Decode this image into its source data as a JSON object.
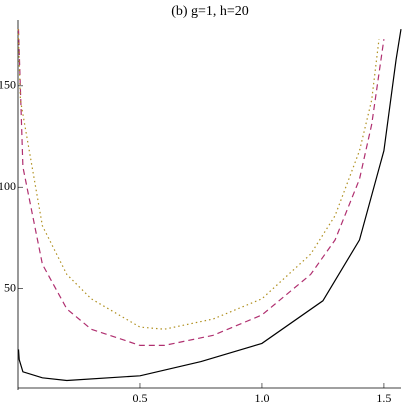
{
  "chart_data": {
    "type": "line",
    "title": "(b) g=1, h=20",
    "xlim": [
      0,
      1.57
    ],
    "ylim": [
      0,
      180
    ],
    "xticks": [
      0.5,
      {
        "value": 1,
        "label": "1.0"
      },
      1.5
    ],
    "yticks": [
      50,
      100,
      150
    ],
    "series": [
      {
        "color": "#000000",
        "dash": "solid",
        "x": [
          0.002,
          0.005,
          0.02,
          0.1,
          0.2,
          0.5,
          0.75,
          1.0,
          1.25,
          1.4,
          1.5,
          1.55,
          1.57
        ],
        "values": [
          20,
          15,
          9,
          6,
          4.7,
          7,
          14,
          23,
          44,
          74,
          118,
          163,
          178
        ]
      },
      {
        "color": "#b03070",
        "dash": "dashed",
        "x": [
          0.002,
          0.02,
          0.1,
          0.2,
          0.3,
          0.5,
          0.6,
          0.8,
          1.0,
          1.2,
          1.3,
          1.4,
          1.45,
          1.5
        ],
        "values": [
          178,
          110,
          62,
          40,
          30,
          22,
          22,
          27,
          37,
          57,
          74,
          104,
          131,
          173
        ]
      },
      {
        "color": "#b09020",
        "dash": "dotted",
        "x": [
          0.001,
          0.01,
          0.1,
          0.2,
          0.3,
          0.5,
          0.6,
          0.8,
          1.0,
          1.2,
          1.3,
          1.4,
          1.45,
          1.48
        ],
        "values": [
          178,
          143,
          81,
          57,
          45,
          31,
          30,
          35,
          45,
          67,
          86,
          118,
          143,
          173
        ]
      }
    ]
  }
}
